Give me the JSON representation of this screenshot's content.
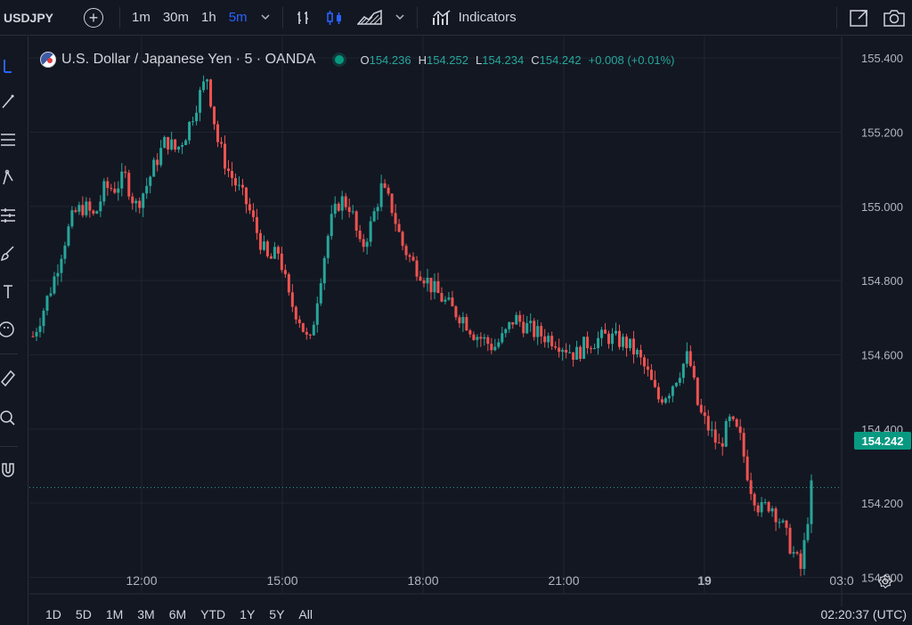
{
  "toolbar": {
    "symbol": "USDJPY",
    "intervals": [
      "1m",
      "30m",
      "1h",
      "5m"
    ],
    "active_interval": "5m",
    "indicators_label": "Indicators"
  },
  "legend": {
    "title": "U.S. Dollar / Japanese Yen · 5 · OANDA",
    "open_key": "O",
    "open": "154.236",
    "high_key": "H",
    "high": "154.252",
    "low_key": "L",
    "low": "154.234",
    "close_key": "C",
    "close": "154.242",
    "change": "+0.008 (+0.01%)"
  },
  "price_axis": [
    "155.400",
    "155.200",
    "155.000",
    "154.800",
    "154.600",
    "154.400",
    "154.200",
    "154.000"
  ],
  "current_price": "154.242",
  "time_axis": [
    "12:00",
    "15:00",
    "18:00",
    "21:00",
    "19",
    "03:0"
  ],
  "ranges": [
    "1D",
    "5D",
    "1M",
    "3M",
    "6M",
    "YTD",
    "1Y",
    "5Y",
    "All"
  ],
  "clock": "02:20:37 (UTC)",
  "colors": {
    "up": "#26a69a",
    "down": "#ef5350",
    "accent": "#2962ff",
    "bg": "#131722",
    "grid": "#1f2430"
  },
  "chart_data": {
    "type": "candlestick",
    "ylim": [
      153.97,
      155.41
    ],
    "y_ticks": [
      155.4,
      155.2,
      155.0,
      154.8,
      154.6,
      154.4,
      154.2,
      154.0
    ],
    "x_ticks": [
      "12:00",
      "15:00",
      "18:00",
      "21:00",
      "19",
      "03:0"
    ],
    "close_path": [
      154.65,
      154.72,
      154.8,
      154.9,
      154.98,
      155.0,
      154.97,
      155.05,
      155.05,
      155.08,
      155.0,
      155.05,
      155.12,
      155.18,
      155.15,
      155.2,
      155.28,
      155.35,
      155.18,
      155.1,
      155.05,
      155.0,
      154.92,
      154.85,
      154.88,
      154.75,
      154.7,
      154.62,
      154.8,
      154.95,
      155.02,
      155.0,
      154.88,
      154.95,
      155.05,
      155.0,
      154.9,
      154.85,
      154.82,
      154.78,
      154.75,
      154.72,
      154.7,
      154.66,
      154.64,
      154.62,
      154.65,
      154.7,
      154.68,
      154.66,
      154.65,
      154.64,
      154.62,
      154.6,
      154.63,
      154.64,
      154.65,
      154.64,
      154.63,
      154.6,
      154.55,
      154.48,
      154.5,
      154.55,
      154.6,
      154.45,
      154.4,
      154.35,
      154.42,
      154.38,
      154.25,
      154.18,
      154.2,
      154.15,
      154.08,
      154.02,
      154.24
    ]
  }
}
